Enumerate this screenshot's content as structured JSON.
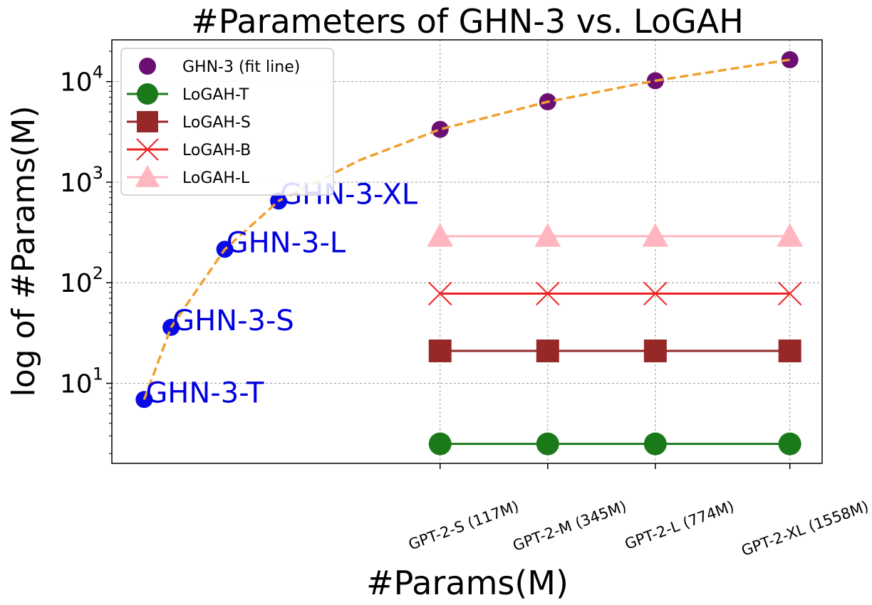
{
  "chart_data": {
    "type": "line",
    "title": "#Parameters of GHN-3 vs. LoGAH",
    "xlabel": "#Params(M)",
    "ylabel": "log of #Params(M)",
    "yscale": "log",
    "ylim": [
      1.6,
      26000
    ],
    "xlim": [
      -0.3,
      6.3
    ],
    "grid": true,
    "legend_position": "top-left",
    "yticks": [
      {
        "value": 10,
        "base": "10",
        "exp": "1"
      },
      {
        "value": 100,
        "base": "10",
        "exp": "2"
      },
      {
        "value": 1000,
        "base": "10",
        "exp": "3"
      },
      {
        "value": 10000,
        "base": "10",
        "exp": "4"
      }
    ],
    "xticks": [
      {
        "x": 2.75,
        "label": "GPT-2-S (117M)"
      },
      {
        "x": 3.75,
        "label": "GPT-2-M (345M)"
      },
      {
        "x": 4.75,
        "label": "GPT-2-L (774M)"
      },
      {
        "x": 6.0,
        "label": "GPT-2-XL (1558M)"
      }
    ],
    "ghn_points": {
      "name": "GHN-3 (fit line)",
      "color": "#6b0f73",
      "points": [
        {
          "x": 2.75,
          "y": 3350
        },
        {
          "x": 3.75,
          "y": 6300
        },
        {
          "x": 4.75,
          "y": 10200
        },
        {
          "x": 6.0,
          "y": 16500
        }
      ]
    },
    "ghn_models": {
      "color": "#0a0ae6",
      "points": [
        {
          "x": 0.0,
          "y": 6.9,
          "label": "GHN-3-T"
        },
        {
          "x": 0.25,
          "y": 36,
          "label": "GHN-3-S"
        },
        {
          "x": 0.75,
          "y": 215,
          "label": "GHN-3-L"
        },
        {
          "x": 1.25,
          "y": 650,
          "label": "GHN-3-XL"
        }
      ]
    },
    "fit_line": {
      "color": "#f0a030",
      "x": [
        0.0,
        0.25,
        0.75,
        1.25,
        2.0,
        2.75,
        3.75,
        4.75,
        6.0
      ],
      "y": [
        6.9,
        36,
        215,
        650,
        1650,
        3350,
        6300,
        10200,
        16500
      ]
    },
    "series": [
      {
        "name": "LoGAH-T",
        "marker": "circle",
        "color": "#1a7a1a",
        "x": [
          2.75,
          3.75,
          4.75,
          6.0
        ],
        "values": [
          2.5,
          2.5,
          2.5,
          2.5
        ]
      },
      {
        "name": "LoGAH-S",
        "marker": "square",
        "color": "#962828",
        "x": [
          2.75,
          3.75,
          4.75,
          6.0
        ],
        "values": [
          21,
          21,
          21,
          21
        ]
      },
      {
        "name": "LoGAH-B",
        "marker": "x",
        "color": "#ee2222",
        "x": [
          2.75,
          3.75,
          4.75,
          6.0
        ],
        "values": [
          78,
          78,
          78,
          78
        ]
      },
      {
        "name": "LoGAH-L",
        "marker": "triangle",
        "color": "#ffb6c1",
        "x": [
          2.75,
          3.75,
          4.75,
          6.0
        ],
        "values": [
          290,
          290,
          290,
          290
        ]
      }
    ]
  }
}
